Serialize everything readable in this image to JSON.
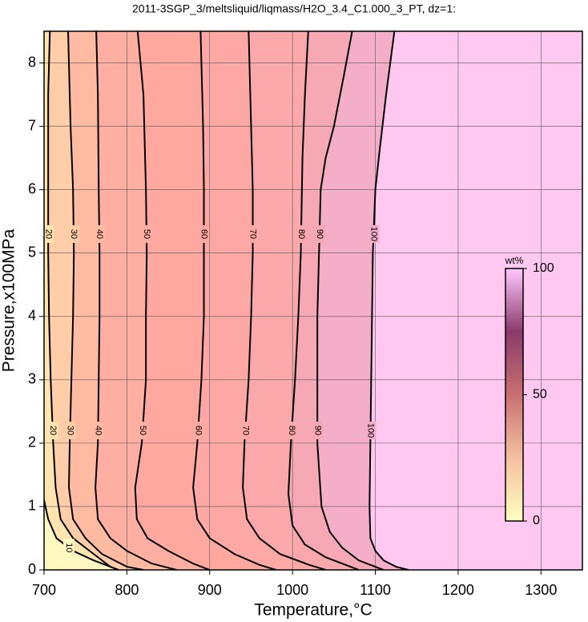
{
  "chart_data": {
    "type": "contour",
    "title": "2011-3SGP_3/meltsliquid/liqmass/H2O_3.4_C1.000_3_PT, dz=1:",
    "x_label": "Temperature,°C",
    "y_label": "Pressure,x100MPa",
    "xlim": [
      700,
      1350
    ],
    "ylim": [
      0,
      8.5
    ],
    "xticks": [
      700,
      800,
      900,
      1000,
      1100,
      1200,
      1300
    ],
    "yticks": [
      0,
      1,
      2,
      3,
      4,
      5,
      6,
      7,
      8
    ],
    "grid": true,
    "background": "#ffc8f0",
    "contours": [
      {
        "level": 100,
        "color": "#f4aec8",
        "x": [
          1123,
          1113,
          1105,
          1100,
          1097,
          1095,
          1094,
          1093,
          1094,
          1100,
          1110,
          1125,
          1140
        ],
        "y": [
          8.5,
          7.5,
          6.6,
          6.0,
          5,
          3,
          2,
          1,
          0.5,
          0.3,
          0.15,
          0.05,
          0
        ]
      },
      {
        "level": 90,
        "color": "#f6a8b4",
        "x": [
          1072,
          1062,
          1050,
          1040,
          1034,
          1032,
          1030,
          1030,
          1030,
          1035,
          1045,
          1060,
          1080,
          1100,
          1110
        ],
        "y": [
          8.5,
          7.8,
          7.0,
          6.5,
          6.0,
          5,
          4,
          3,
          2,
          1,
          0.6,
          0.35,
          0.15,
          0.05,
          0
        ]
      },
      {
        "level": 80,
        "color": "#faa8aa",
        "x": [
          1019,
          1015,
          1012,
          1010,
          1007,
          1003,
          998,
          995,
          1000,
          1015,
          1040,
          1070,
          1080
        ],
        "y": [
          8.5,
          7.5,
          6.5,
          5,
          4,
          3,
          2,
          1.2,
          0.7,
          0.4,
          0.2,
          0.05,
          0
        ]
      },
      {
        "level": 70,
        "color": "#fda8a4",
        "x": [
          947,
          950,
          952,
          952,
          950,
          947,
          942,
          940,
          945,
          960,
          985,
          1020,
          1040
        ],
        "y": [
          8.5,
          7,
          6,
          5,
          4,
          3,
          2,
          1.3,
          0.8,
          0.5,
          0.25,
          0.08,
          0
        ]
      },
      {
        "level": 60,
        "color": "#ffa8a0",
        "x": [
          889,
          892,
          893,
          893,
          893,
          890,
          885,
          880,
          885,
          900,
          930,
          960,
          980
        ],
        "y": [
          8.5,
          7,
          6,
          5,
          4,
          3,
          2,
          1.3,
          0.8,
          0.5,
          0.25,
          0.08,
          0
        ]
      },
      {
        "level": 50,
        "color": "#ffaea2",
        "x": [
          813,
          820,
          823,
          824,
          823,
          823,
          818,
          810,
          812,
          825,
          850,
          880,
          900
        ],
        "y": [
          8.5,
          7.5,
          6,
          5,
          4,
          3,
          2,
          1.3,
          0.8,
          0.5,
          0.3,
          0.1,
          0
        ]
      },
      {
        "level": 40,
        "color": "#ffbaa2",
        "x": [
          763,
          765,
          766,
          767,
          767,
          766,
          765,
          762,
          765,
          780,
          800,
          830,
          860
        ],
        "y": [
          8.5,
          7.5,
          6,
          5,
          4,
          3,
          2,
          1.3,
          0.8,
          0.5,
          0.3,
          0.1,
          0
        ]
      },
      {
        "level": 30,
        "color": "#ffcea8",
        "x": [
          729,
          732,
          735,
          736,
          735,
          733,
          731,
          730,
          735,
          750,
          770,
          800,
          820
        ],
        "y": [
          8.5,
          7,
          6,
          5,
          4,
          3,
          2,
          1.3,
          0.8,
          0.5,
          0.25,
          0.05,
          0
        ]
      },
      {
        "level": 20,
        "color": "#ffe4b0",
        "x": [
          707,
          705,
          705,
          706,
          708,
          711,
          714,
          720,
          735,
          760,
          780,
          790
        ],
        "y": [
          8.5,
          7.5,
          5,
          4,
          3,
          2,
          1.3,
          0.8,
          0.5,
          0.25,
          0.05,
          0
        ]
      },
      {
        "level": 10,
        "color": "#fff8c0",
        "x": [
          700,
          705,
          715,
          735,
          760,
          780,
          790
        ],
        "y": [
          1.1,
          0.8,
          0.5,
          0.3,
          0.15,
          0.05,
          0
        ]
      }
    ],
    "colorbar": {
      "label": "wt%",
      "lim": [
        0,
        100
      ],
      "ticks": [
        0,
        50,
        100
      ],
      "colors": [
        "#ffffc0",
        "#f4c0a0",
        "#c87070",
        "#8a3a6a",
        "#ffc8ff"
      ]
    }
  }
}
